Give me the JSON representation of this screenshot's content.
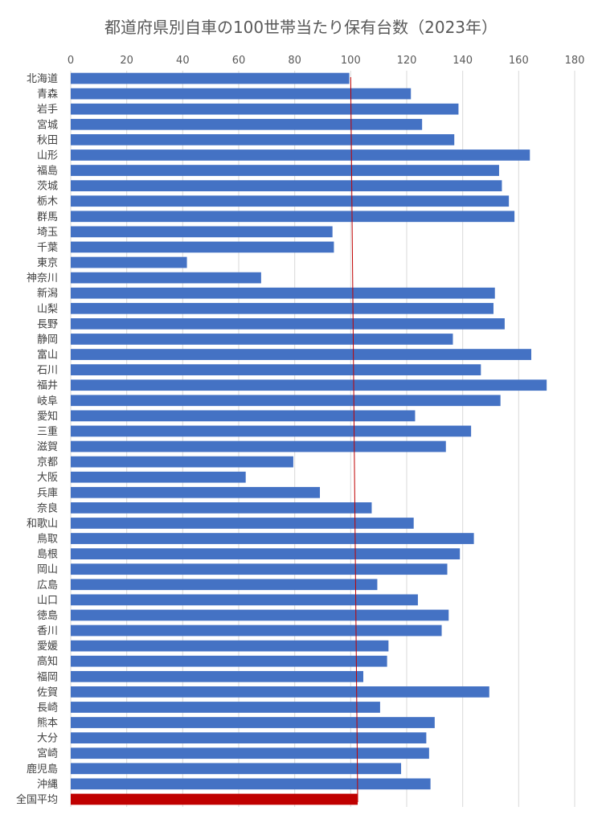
{
  "chart_data": {
    "type": "bar",
    "orientation": "horizontal",
    "title": "都道府県別自車の100世帯当たり保有台数（2023年）",
    "xlabel": "",
    "ylabel": "",
    "xlim": [
      0,
      180
    ],
    "xticks": [
      "0",
      "20",
      "40",
      "60",
      "80",
      "100",
      "120",
      "140",
      "160",
      "180"
    ],
    "grid": true,
    "categories": [
      "北海道",
      "青森",
      "岩手",
      "宮城",
      "秋田",
      "山形",
      "福島",
      "茨城",
      "栃木",
      "群馬",
      "埼玉",
      "千葉",
      "東京",
      "神奈川",
      "新潟",
      "山梨",
      "長野",
      "静岡",
      "富山",
      "石川",
      "福井",
      "岐阜",
      "愛知",
      "三重",
      "滋賀",
      "京都",
      "大阪",
      "兵庫",
      "奈良",
      "和歌山",
      "鳥取",
      "島根",
      "岡山",
      "広島",
      "山口",
      "徳島",
      "香川",
      "愛媛",
      "高知",
      "福岡",
      "佐賀",
      "長崎",
      "熊本",
      "大分",
      "宮崎",
      "鹿児島",
      "沖縄",
      "全国平均"
    ],
    "values": [
      99.5,
      121.5,
      138.5,
      125.5,
      137,
      164,
      153,
      154,
      156.5,
      158.5,
      93.5,
      94,
      41.5,
      68,
      151.5,
      151,
      155,
      136.5,
      164.5,
      146.5,
      170,
      153.5,
      123,
      143,
      134,
      79.5,
      62.5,
      89,
      107.5,
      122.5,
      144,
      139,
      134.5,
      109.5,
      124,
      135,
      132.5,
      113.5,
      113,
      104.5,
      149.5,
      110.5,
      130,
      127,
      128,
      118,
      128.5,
      102.5
    ],
    "bar_color": "#4472c4",
    "highlight_color": "#c00000",
    "reference_line": {
      "value": 101,
      "color": "#c00000"
    }
  }
}
